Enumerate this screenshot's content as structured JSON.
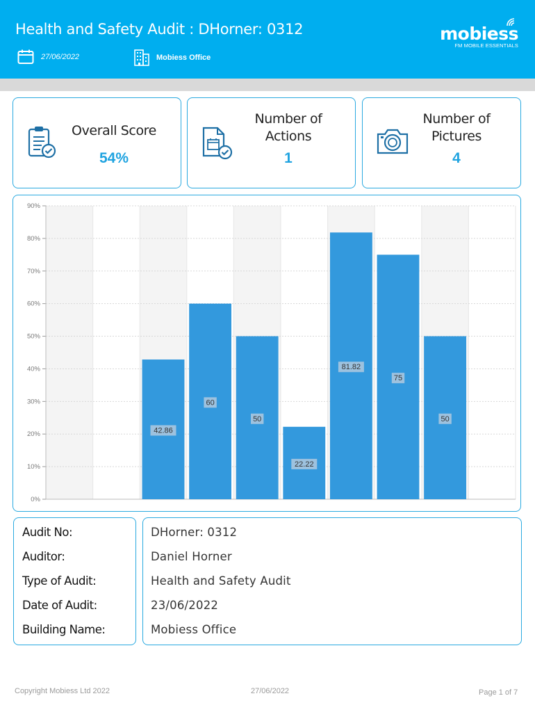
{
  "header": {
    "title": "Health and Safety Audit : DHorner: 0312",
    "date": "27/06/2022",
    "location": "Mobiess Office",
    "logo_word": "mobiess",
    "logo_tagline": "FM MOBILE ESSENTIALS",
    "background": "#00aeef"
  },
  "stats": [
    {
      "label_line1": "Overall Score",
      "label_line2": "",
      "value": "54%",
      "icon": "clipboard-check-icon"
    },
    {
      "label_line1": "Number of",
      "label_line2": "Actions",
      "value": "1",
      "icon": "calendar-document-icon"
    },
    {
      "label_line1": "Number of",
      "label_line2": "Pictures",
      "value": "4",
      "icon": "camera-icon"
    }
  ],
  "chart_data": {
    "type": "bar",
    "categories": [
      "",
      "",
      "",
      "",
      "",
      "",
      "",
      "",
      "",
      ""
    ],
    "values": [
      null,
      null,
      42.86,
      60,
      50,
      22.22,
      81.82,
      75,
      50,
      null
    ],
    "data_labels": [
      "",
      "",
      "42.86",
      "60",
      "50",
      "22.22",
      "81.82",
      "75",
      "50",
      ""
    ],
    "y_ticks": [
      "0%",
      "10%",
      "20%",
      "30%",
      "40%",
      "50%",
      "60%",
      "70%",
      "80%",
      "90%"
    ],
    "ylim": [
      0,
      90
    ],
    "bar_color": "#3399dd",
    "grid": true,
    "title": "",
    "xlabel": "",
    "ylabel": ""
  },
  "info": {
    "rows": [
      {
        "label": "Audit No:",
        "value": "DHorner: 0312"
      },
      {
        "label": "Auditor:",
        "value": "Daniel Horner"
      },
      {
        "label": "Type of Audit:",
        "value": "Health and Safety Audit"
      },
      {
        "label": "Date of Audit:",
        "value": "23/06/2022"
      },
      {
        "label": "Building Name:",
        "value": "Mobiess Office"
      }
    ]
  },
  "footer": {
    "copyright": "Copyright Mobiess Ltd 2022",
    "date": "27/06/2022",
    "page": "Page 1 of 7"
  }
}
